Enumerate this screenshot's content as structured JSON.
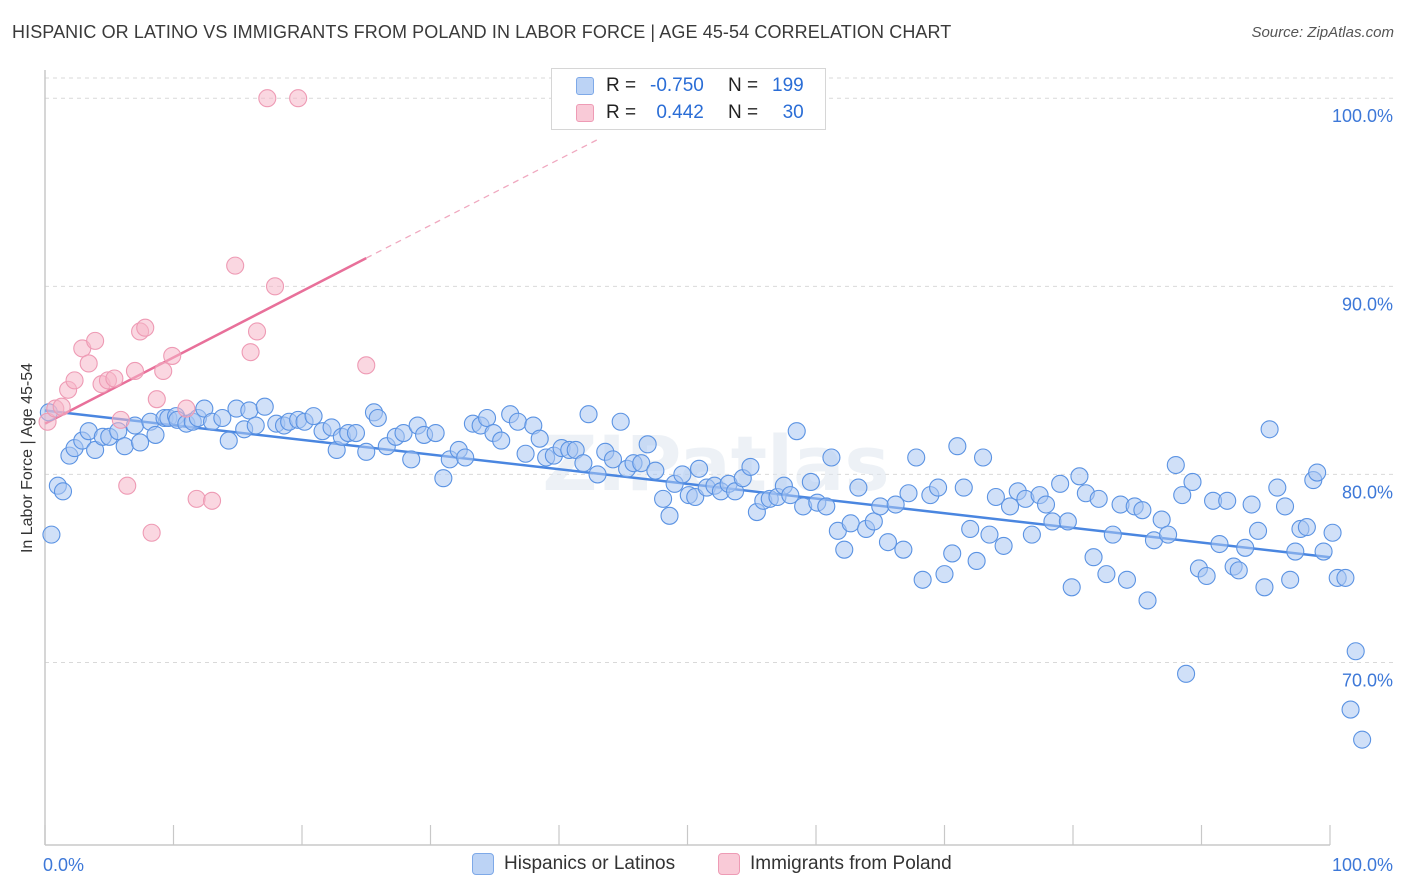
{
  "header": {
    "title": "HISPANIC OR LATINO VS IMMIGRANTS FROM POLAND IN LABOR FORCE | AGE 45-54 CORRELATION CHART",
    "source": "Source: ZipAtlas.com"
  },
  "watermark": "ZIPatlas",
  "legend": {
    "rows": [
      {
        "r_label": "R =",
        "r_value": "-0.750",
        "n_label": "N =",
        "n_value": "199",
        "color": "#a9c6f2"
      },
      {
        "r_label": "R =",
        "r_value": "0.442",
        "n_label": "N =",
        "n_value": "30",
        "color": "#f6b6c8"
      }
    ]
  },
  "bottom_legend": [
    {
      "label": "Hispanics or Latinos",
      "color": "#a9c6f2"
    },
    {
      "label": "Immigrants from Poland",
      "color": "#f6b6c8"
    }
  ],
  "chart_data": {
    "type": "scatter",
    "title": "HISPANIC OR LATINO VS IMMIGRANTS FROM POLAND IN LABOR FORCE | AGE 45-54 CORRELATION CHART",
    "xlabel": "",
    "ylabel": "In Labor Force | Age 45-54",
    "x_tick_labels": [
      "0.0%",
      "100.0%"
    ],
    "y_tick_labels": [
      "70.0%",
      "80.0%",
      "90.0%",
      "100.0%"
    ],
    "y_ticks": [
      70,
      80,
      90,
      100
    ],
    "xlim": [
      0,
      100
    ],
    "ylim": [
      60.3,
      101.5
    ],
    "grid": true,
    "legend_position": "top-center",
    "series": [
      {
        "name": "Hispanics or Latinos",
        "color": "#4a86e0",
        "fill": "#a9c6f2",
        "r": -0.75,
        "n": 199,
        "trend": {
          "x": [
            0,
            100
          ],
          "y": [
            83.4,
            75.6
          ]
        },
        "points": [
          [
            0.3,
            83.3
          ],
          [
            0.5,
            76.8
          ],
          [
            1.0,
            79.4
          ],
          [
            1.4,
            79.1
          ],
          [
            1.9,
            81.0
          ],
          [
            2.3,
            81.4
          ],
          [
            2.9,
            81.8
          ],
          [
            3.4,
            82.3
          ],
          [
            3.9,
            81.3
          ],
          [
            4.5,
            82.0
          ],
          [
            5.0,
            82.0
          ],
          [
            5.7,
            82.3
          ],
          [
            6.2,
            81.5
          ],
          [
            7.0,
            82.6
          ],
          [
            7.4,
            81.7
          ],
          [
            8.2,
            82.8
          ],
          [
            8.6,
            82.1
          ],
          [
            9.3,
            83.0
          ],
          [
            9.6,
            83.0
          ],
          [
            10.2,
            83.1
          ],
          [
            10.3,
            82.9
          ],
          [
            11.0,
            82.7
          ],
          [
            11.5,
            82.8
          ],
          [
            11.9,
            83.0
          ],
          [
            12.4,
            83.5
          ],
          [
            13.0,
            82.8
          ],
          [
            13.8,
            83.0
          ],
          [
            14.3,
            81.8
          ],
          [
            14.9,
            83.5
          ],
          [
            15.5,
            82.4
          ],
          [
            15.9,
            83.4
          ],
          [
            16.4,
            82.6
          ],
          [
            17.1,
            83.6
          ],
          [
            18.0,
            82.7
          ],
          [
            18.6,
            82.6
          ],
          [
            19.0,
            82.8
          ],
          [
            19.7,
            82.9
          ],
          [
            20.2,
            82.8
          ],
          [
            20.9,
            83.1
          ],
          [
            21.6,
            82.3
          ],
          [
            22.3,
            82.5
          ],
          [
            22.7,
            81.3
          ],
          [
            23.1,
            82.0
          ],
          [
            23.6,
            82.2
          ],
          [
            24.2,
            82.2
          ],
          [
            25.0,
            81.2
          ],
          [
            25.6,
            83.3
          ],
          [
            25.9,
            83.0
          ],
          [
            26.6,
            81.5
          ],
          [
            27.3,
            82.0
          ],
          [
            27.9,
            82.2
          ],
          [
            28.5,
            80.8
          ],
          [
            29.0,
            82.6
          ],
          [
            29.5,
            82.1
          ],
          [
            30.4,
            82.2
          ],
          [
            31.0,
            79.8
          ],
          [
            31.5,
            80.8
          ],
          [
            32.2,
            81.3
          ],
          [
            32.7,
            80.9
          ],
          [
            33.3,
            82.7
          ],
          [
            33.9,
            82.6
          ],
          [
            34.4,
            83.0
          ],
          [
            34.9,
            82.2
          ],
          [
            35.5,
            81.8
          ],
          [
            36.2,
            83.2
          ],
          [
            36.8,
            82.8
          ],
          [
            37.4,
            81.1
          ],
          [
            38.0,
            82.6
          ],
          [
            38.5,
            81.9
          ],
          [
            39.0,
            80.9
          ],
          [
            39.6,
            81.0
          ],
          [
            40.2,
            81.4
          ],
          [
            40.8,
            81.3
          ],
          [
            41.3,
            81.3
          ],
          [
            41.9,
            80.6
          ],
          [
            42.3,
            83.2
          ],
          [
            43.0,
            80.0
          ],
          [
            43.6,
            81.2
          ],
          [
            44.2,
            80.8
          ],
          [
            44.8,
            82.8
          ],
          [
            45.3,
            80.3
          ],
          [
            45.8,
            80.6
          ],
          [
            46.4,
            80.6
          ],
          [
            46.9,
            81.6
          ],
          [
            47.5,
            80.2
          ],
          [
            48.1,
            78.7
          ],
          [
            48.6,
            77.8
          ],
          [
            49.0,
            79.5
          ],
          [
            49.6,
            80.0
          ],
          [
            50.1,
            78.9
          ],
          [
            50.6,
            78.8
          ],
          [
            50.9,
            80.3
          ],
          [
            51.5,
            79.3
          ],
          [
            52.1,
            79.4
          ],
          [
            52.6,
            79.1
          ],
          [
            53.2,
            79.5
          ],
          [
            53.7,
            79.1
          ],
          [
            54.3,
            79.8
          ],
          [
            54.9,
            80.4
          ],
          [
            55.4,
            78.0
          ],
          [
            55.9,
            78.6
          ],
          [
            56.4,
            78.7
          ],
          [
            57.0,
            78.8
          ],
          [
            57.5,
            79.4
          ],
          [
            58.0,
            78.9
          ],
          [
            58.5,
            82.3
          ],
          [
            59.0,
            78.3
          ],
          [
            59.6,
            79.6
          ],
          [
            60.1,
            78.5
          ],
          [
            60.8,
            78.3
          ],
          [
            61.2,
            80.9
          ],
          [
            61.7,
            77.0
          ],
          [
            62.2,
            76.0
          ],
          [
            62.7,
            77.4
          ],
          [
            63.3,
            79.3
          ],
          [
            63.9,
            77.1
          ],
          [
            64.5,
            77.5
          ],
          [
            65.0,
            78.3
          ],
          [
            65.6,
            76.4
          ],
          [
            66.2,
            78.4
          ],
          [
            66.8,
            76.0
          ],
          [
            67.2,
            79.0
          ],
          [
            67.8,
            80.9
          ],
          [
            68.3,
            74.4
          ],
          [
            68.9,
            78.9
          ],
          [
            69.5,
            79.3
          ],
          [
            70.0,
            74.7
          ],
          [
            70.6,
            75.8
          ],
          [
            71.0,
            81.5
          ],
          [
            71.5,
            79.3
          ],
          [
            72.0,
            77.1
          ],
          [
            72.5,
            75.4
          ],
          [
            73.0,
            80.9
          ],
          [
            73.5,
            76.8
          ],
          [
            74.0,
            78.8
          ],
          [
            74.6,
            76.2
          ],
          [
            75.1,
            78.3
          ],
          [
            75.7,
            79.1
          ],
          [
            76.3,
            78.7
          ],
          [
            76.8,
            76.8
          ],
          [
            77.4,
            78.9
          ],
          [
            77.9,
            78.4
          ],
          [
            78.4,
            77.5
          ],
          [
            79.0,
            79.5
          ],
          [
            79.6,
            77.5
          ],
          [
            79.9,
            74.0
          ],
          [
            80.5,
            79.9
          ],
          [
            81.0,
            79.0
          ],
          [
            81.6,
            75.6
          ],
          [
            82.0,
            78.7
          ],
          [
            82.6,
            74.7
          ],
          [
            83.1,
            76.8
          ],
          [
            83.7,
            78.4
          ],
          [
            84.2,
            74.4
          ],
          [
            84.8,
            78.3
          ],
          [
            85.4,
            78.1
          ],
          [
            85.8,
            73.3
          ],
          [
            86.3,
            76.5
          ],
          [
            86.9,
            77.6
          ],
          [
            87.4,
            76.8
          ],
          [
            88.0,
            80.5
          ],
          [
            88.5,
            78.9
          ],
          [
            88.8,
            69.4
          ],
          [
            89.3,
            79.6
          ],
          [
            89.8,
            75.0
          ],
          [
            90.4,
            74.6
          ],
          [
            90.9,
            78.6
          ],
          [
            91.4,
            76.3
          ],
          [
            92.0,
            78.6
          ],
          [
            92.5,
            75.1
          ],
          [
            92.9,
            74.9
          ],
          [
            93.4,
            76.1
          ],
          [
            93.9,
            78.4
          ],
          [
            94.4,
            77.0
          ],
          [
            94.9,
            74.0
          ],
          [
            95.3,
            82.4
          ],
          [
            95.9,
            79.3
          ],
          [
            96.5,
            78.3
          ],
          [
            96.9,
            74.4
          ],
          [
            97.3,
            75.9
          ],
          [
            97.7,
            77.1
          ],
          [
            98.2,
            77.2
          ],
          [
            98.7,
            79.7
          ],
          [
            99.0,
            80.1
          ],
          [
            99.5,
            75.9
          ],
          [
            100.2,
            76.9
          ],
          [
            100.6,
            74.5
          ],
          [
            101.2,
            74.5
          ],
          [
            101.6,
            67.5
          ],
          [
            102.0,
            70.6
          ],
          [
            102.5,
            65.9
          ]
        ]
      },
      {
        "name": "Immigrants from Poland",
        "color": "#e8709a",
        "fill": "#f6b6c8",
        "r": 0.442,
        "n": 30,
        "trend": {
          "x": [
            0,
            25
          ],
          "y": [
            82.7,
            91.5
          ]
        },
        "trend_dashed": {
          "x": [
            25,
            43
          ],
          "y": [
            91.5,
            97.8
          ]
        },
        "points": [
          [
            0.2,
            82.8
          ],
          [
            0.8,
            83.5
          ],
          [
            1.3,
            83.6
          ],
          [
            1.8,
            84.5
          ],
          [
            2.3,
            85.0
          ],
          [
            2.9,
            86.7
          ],
          [
            3.4,
            85.9
          ],
          [
            3.9,
            87.1
          ],
          [
            4.4,
            84.8
          ],
          [
            4.9,
            85.0
          ],
          [
            5.4,
            85.1
          ],
          [
            5.9,
            82.9
          ],
          [
            6.4,
            79.4
          ],
          [
            7.0,
            85.5
          ],
          [
            7.4,
            87.6
          ],
          [
            7.8,
            87.8
          ],
          [
            8.3,
            76.9
          ],
          [
            8.7,
            84.0
          ],
          [
            9.2,
            85.5
          ],
          [
            9.9,
            86.3
          ],
          [
            11.0,
            83.5
          ],
          [
            11.8,
            78.7
          ],
          [
            13.0,
            78.6
          ],
          [
            14.8,
            91.1
          ],
          [
            16.0,
            86.5
          ],
          [
            16.5,
            87.6
          ],
          [
            17.3,
            100.0
          ],
          [
            17.9,
            90.0
          ],
          [
            19.7,
            100.0
          ],
          [
            25.0,
            85.8
          ]
        ]
      }
    ]
  }
}
